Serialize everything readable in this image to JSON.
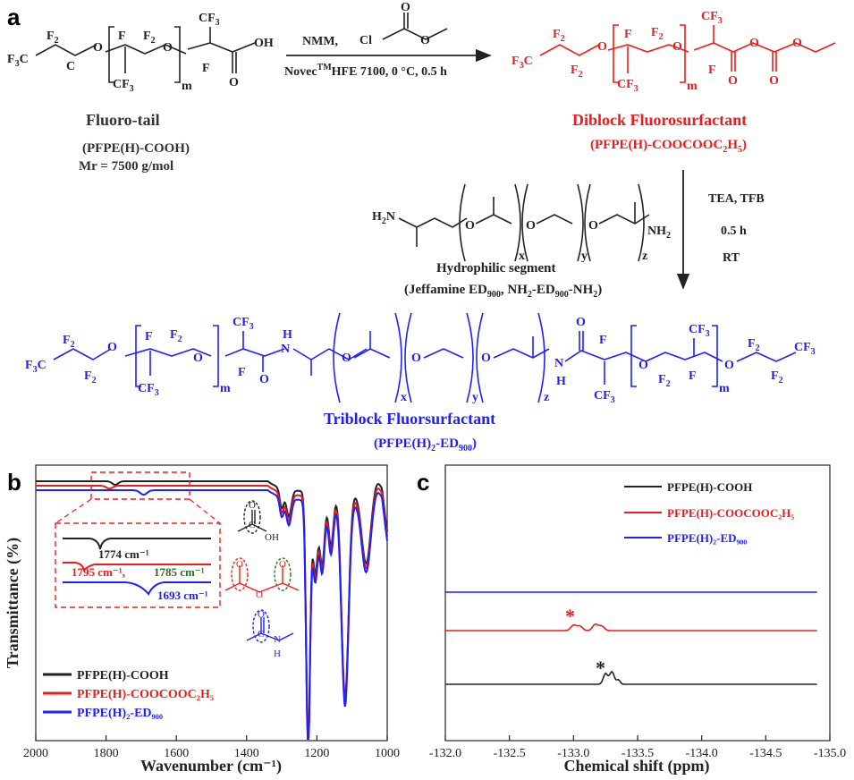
{
  "panel_labels": {
    "a": "a",
    "b": "b",
    "c": "c"
  },
  "colors": {
    "black": "#222222",
    "red": "#ee1c1c",
    "blue": "#1f1fff",
    "green": "#2c6e1f"
  },
  "scheme": {
    "reagents_top": "NMM,",
    "reagent_acid_chloride_cl": "Cl",
    "conditions_line": "HFE 7100,  0 °C,  0.5 h",
    "conditions_prefix": "Novec",
    "conditions_tm": "TM",
    "fluoro_tail": {
      "name": "Fluoro-tail",
      "formula": "(PFPE(H)-COOH)",
      "mr": "Mr = 7500 g/mol"
    },
    "diblock": {
      "name": "Diblock Fluorosurfactant",
      "formula_main": "(PFPE(H)-COOCOOC",
      "formula_sub1": "2",
      "formula_mid": "H",
      "formula_sub2": "5",
      "formula_end": ")"
    },
    "step2_conditions": [
      "TEA, TFB",
      "0.5 h",
      "RT"
    ],
    "hydrophilic": {
      "name": "Hydrophilic segment",
      "jeffamine": "(Jeffamine ED",
      "jeffamine_sub": "900",
      "jeffamine_rest": ", NH",
      "nh2_sub": "2",
      "ed_mid": "-ED",
      "ed_sub": "900",
      "ed_end": "-NH",
      "end_sub": "2",
      "close": ")"
    },
    "triblock": {
      "name": "Triblock Fluorsurfactant",
      "formula_main": "(PFPE(H)",
      "formula_sub": "2",
      "formula_mid": "-ED",
      "formula_sub2": "900",
      "formula_end": ")"
    }
  },
  "chart_data": [
    {
      "type": "line",
      "panel": "b",
      "xlabel": "Wavenumber (cm⁻¹)",
      "ylabel": "Transmittance (%)",
      "xlim": [
        2000,
        1000
      ],
      "xticks": [
        "2000",
        "1800",
        "1600",
        "1400",
        "1200",
        "1000"
      ],
      "series": [
        {
          "name": "PFPE(H)-COOH",
          "color": "#222222"
        },
        {
          "name": "PFPE(H)-COOCOOC₂H₅",
          "color": "#ee1c1c"
        },
        {
          "name": "PFPE(H)₂-ED₉₀₀",
          "color": "#1f1fff"
        }
      ],
      "annotations": [
        "1774 cm⁻¹",
        "1795 cm⁻¹,",
        "1785 cm⁻¹",
        "1693 cm⁻¹"
      ],
      "group_labels": {
        "oh": "OH",
        "h": "H",
        "n": "N"
      }
    },
    {
      "type": "line",
      "panel": "c",
      "xlabel": "Chemical shift (ppm)",
      "xlim": [
        -132.0,
        -135.0
      ],
      "xticks": [
        "-132.0",
        "-132.5",
        "-133.0",
        "-133.5",
        "-134.0",
        "-134.5",
        "-135.0"
      ],
      "series": [
        {
          "name": "PFPE(H)-COOH",
          "color": "#222222"
        },
        {
          "name": "PFPE(H)-COOCOOC₂H₅",
          "color": "#ee1c1c"
        },
        {
          "name": "PFPE(H)₂-ED₉₀₀",
          "color": "#1f1fff"
        }
      ],
      "peak_markers": [
        "*",
        "*"
      ]
    }
  ]
}
